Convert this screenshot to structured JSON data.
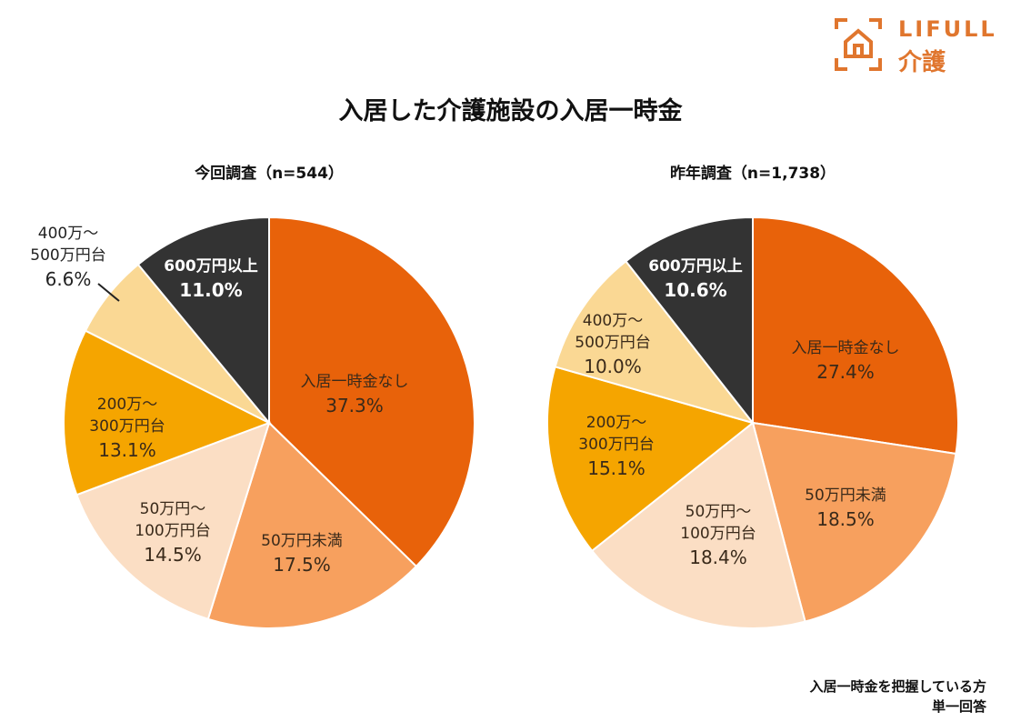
{
  "title": "入居した介護施設の入居一時金",
  "logo": {
    "text_en": "LIFULL",
    "text_jp": "介護",
    "color": "#E0762E"
  },
  "notes": [
    "入居一時金を把握している方",
    "単一回答"
  ],
  "colors": [
    "#E8620A",
    "#F7A05E",
    "#FBDEC4",
    "#F5A500",
    "#FAD894",
    "#333333"
  ],
  "chart_data": [
    {
      "type": "pie",
      "title": "今回調査（n=544）",
      "start": "top",
      "direction": "clockwise",
      "categories": [
        "入居一時金なし",
        "50万円未満",
        "50万円～100万円台",
        "200万～300万円台",
        "400万～500万円台",
        "600万円以上"
      ],
      "label_lines": [
        [
          "入居一時金なし"
        ],
        [
          "50万円未満"
        ],
        [
          "50万円～",
          "100万円台"
        ],
        [
          "200万～",
          "300万円台"
        ],
        [
          "400万～",
          "500万円台"
        ],
        [
          "600万円以上"
        ]
      ],
      "values": [
        37.3,
        17.5,
        14.5,
        13.1,
        6.6,
        11.0
      ],
      "value_labels": [
        "37.3%",
        "17.5%",
        "14.5%",
        "13.1%",
        "6.6%",
        "11.0%"
      ]
    },
    {
      "type": "pie",
      "title": "昨年調査（n=1,738）",
      "start": "top",
      "direction": "clockwise",
      "categories": [
        "入居一時金なし",
        "50万円未満",
        "50万円～100万円台",
        "200万～300万円台",
        "400万～500万円台",
        "600万円以上"
      ],
      "label_lines": [
        [
          "入居一時金なし"
        ],
        [
          "50万円未満"
        ],
        [
          "50万円～",
          "100万円台"
        ],
        [
          "200万～",
          "300万円台"
        ],
        [
          "400万～",
          "500万円台"
        ],
        [
          "600万円以上"
        ]
      ],
      "values": [
        27.4,
        18.5,
        18.4,
        15.1,
        10.0,
        10.6
      ],
      "value_labels": [
        "27.4%",
        "18.5%",
        "18.4%",
        "15.1%",
        "10.0%",
        "10.6%"
      ]
    }
  ]
}
